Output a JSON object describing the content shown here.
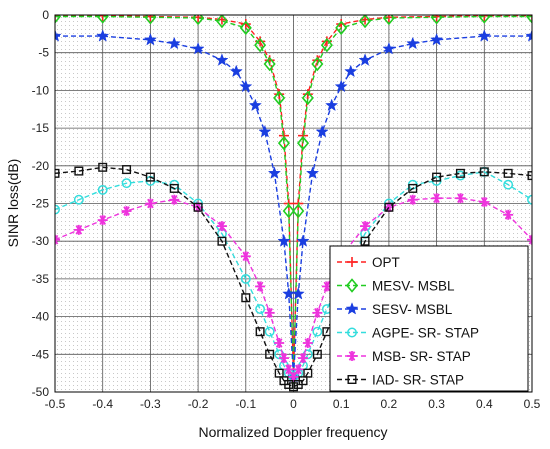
{
  "chart_data": {
    "type": "line",
    "xlabel": "Normalized Doppler frequency",
    "ylabel": "SINR loss(dB)",
    "xlim": [
      -0.5,
      0.5
    ],
    "ylim": [
      -50,
      0
    ],
    "xticks": [
      "-0.5",
      "-0.4",
      "-0.3",
      "-0.2",
      "-0.1",
      "0",
      "0.1",
      "0.2",
      "0.3",
      "0.4",
      "0.5"
    ],
    "yticks": [
      "0",
      "-5",
      "-10",
      "-15",
      "-20",
      "-25",
      "-30",
      "-35",
      "-40",
      "-45",
      "-50"
    ],
    "grid": "major solid, minor dotted",
    "legend_position": "bottom-right",
    "series": [
      {
        "name": "OPT",
        "color": "#ff2020",
        "marker": "plus",
        "x": [
          -0.5,
          -0.4,
          -0.3,
          -0.2,
          -0.15,
          -0.1,
          -0.07,
          -0.05,
          -0.03,
          -0.02,
          -0.01,
          0,
          0.01,
          0.02,
          0.03,
          0.05,
          0.07,
          0.1,
          0.15,
          0.2,
          0.3,
          0.4,
          0.5
        ],
        "y": [
          -0.1,
          -0.1,
          -0.2,
          -0.3,
          -0.6,
          -1.2,
          -3.5,
          -6,
          -10.5,
          -16,
          -25,
          -48,
          -25,
          -16,
          -10.5,
          -6,
          -3.5,
          -1.2,
          -0.6,
          -0.3,
          -0.2,
          -0.1,
          -0.1
        ]
      },
      {
        "name": "MESV- MSBL",
        "color": "#22cc22",
        "marker": "diamond",
        "x": [
          -0.5,
          -0.4,
          -0.3,
          -0.2,
          -0.15,
          -0.1,
          -0.07,
          -0.05,
          -0.03,
          -0.02,
          -0.01,
          0,
          0.01,
          0.02,
          0.03,
          0.05,
          0.07,
          0.1,
          0.15,
          0.2,
          0.3,
          0.4,
          0.5
        ],
        "y": [
          -0.2,
          -0.2,
          -0.3,
          -0.4,
          -0.8,
          -1.7,
          -4,
          -6.5,
          -11,
          -17,
          -26,
          -48,
          -26,
          -17,
          -11,
          -6.5,
          -4,
          -1.7,
          -0.8,
          -0.4,
          -0.3,
          -0.2,
          -0.2
        ]
      },
      {
        "name": "SESV- MSBL",
        "color": "#1a3ee0",
        "marker": "star",
        "x": [
          -0.5,
          -0.4,
          -0.3,
          -0.25,
          -0.2,
          -0.15,
          -0.12,
          -0.1,
          -0.08,
          -0.06,
          -0.04,
          -0.02,
          -0.01,
          0,
          0.01,
          0.02,
          0.04,
          0.06,
          0.08,
          0.1,
          0.12,
          0.15,
          0.2,
          0.25,
          0.3,
          0.4,
          0.5
        ],
        "y": [
          -2.8,
          -2.8,
          -3.3,
          -3.8,
          -4.5,
          -6,
          -7.5,
          -9.5,
          -12,
          -15.5,
          -21,
          -30,
          -37,
          -48,
          -37,
          -30,
          -21,
          -15.5,
          -12,
          -9.5,
          -7.5,
          -6,
          -4.5,
          -3.8,
          -3.3,
          -2.8,
          -2.8
        ]
      },
      {
        "name": "AGPE- SR- STAP",
        "color": "#33dddd",
        "marker": "circle",
        "x": [
          -0.5,
          -0.45,
          -0.4,
          -0.35,
          -0.3,
          -0.25,
          -0.2,
          -0.15,
          -0.1,
          -0.07,
          -0.05,
          -0.03,
          -0.02,
          -0.01,
          0,
          0.01,
          0.02,
          0.03,
          0.05,
          0.07,
          0.1,
          0.15,
          0.2,
          0.25,
          0.3,
          0.35,
          0.4,
          0.45,
          0.5
        ],
        "y": [
          -25.8,
          -24.5,
          -23.2,
          -22.3,
          -22,
          -22.5,
          -25,
          -29,
          -35,
          -39,
          -42,
          -45,
          -46.5,
          -47.5,
          -48,
          -47.5,
          -46.5,
          -45,
          -42,
          -39,
          -35,
          -29,
          -25,
          -22.5,
          -22,
          -21.3,
          -20.8,
          -22.5,
          -24.5
        ]
      },
      {
        "name": "MSB- SR- STAP",
        "color": "#ee33dd",
        "marker": "asterisk",
        "x": [
          -0.5,
          -0.45,
          -0.4,
          -0.35,
          -0.3,
          -0.25,
          -0.2,
          -0.15,
          -0.1,
          -0.07,
          -0.05,
          -0.03,
          -0.02,
          -0.01,
          0,
          0.01,
          0.02,
          0.03,
          0.05,
          0.07,
          0.1,
          0.15,
          0.2,
          0.25,
          0.3,
          0.35,
          0.4,
          0.45,
          0.5
        ],
        "y": [
          -29.8,
          -28.5,
          -27.2,
          -26,
          -25,
          -24.5,
          -25.5,
          -28,
          -32,
          -36,
          -39.5,
          -43.5,
          -45.5,
          -47,
          -48,
          -47,
          -45.5,
          -43.5,
          -39.5,
          -36,
          -32,
          -28,
          -25.5,
          -24.5,
          -24.3,
          -24.3,
          -24.8,
          -26.5,
          -29.8
        ]
      },
      {
        "name": "IAD- SR- STAP",
        "color": "#111111",
        "marker": "square",
        "x": [
          -0.5,
          -0.45,
          -0.4,
          -0.35,
          -0.3,
          -0.25,
          -0.2,
          -0.15,
          -0.1,
          -0.07,
          -0.05,
          -0.03,
          -0.02,
          -0.01,
          0,
          0.01,
          0.02,
          0.03,
          0.05,
          0.07,
          0.1,
          0.15,
          0.2,
          0.25,
          0.3,
          0.35,
          0.4,
          0.45,
          0.5
        ],
        "y": [
          -21,
          -20.7,
          -20.2,
          -20.5,
          -21.5,
          -23,
          -25.5,
          -30,
          -37.5,
          -42,
          -45,
          -47.5,
          -48.5,
          -49,
          -49.3,
          -49,
          -48.5,
          -47.5,
          -45,
          -42,
          -37.5,
          -30,
          -25.5,
          -23,
          -21.5,
          -21,
          -20.8,
          -21,
          -21.3
        ]
      }
    ]
  }
}
